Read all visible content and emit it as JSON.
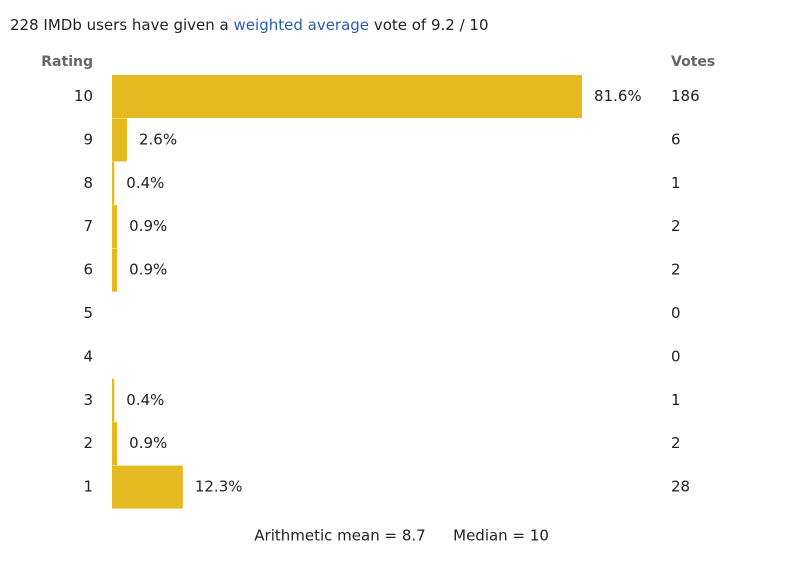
{
  "summary": {
    "prefix": "228 IMDb users have given a",
    "link": "weighted average",
    "suffix": "vote of 9.2 / 10"
  },
  "chart_data": {
    "type": "hbar",
    "category_header": "Rating",
    "votes_header": "Votes",
    "categories": [
      "10",
      "9",
      "8",
      "7",
      "6",
      "5",
      "4",
      "3",
      "2",
      "1"
    ],
    "values": [
      81.6,
      2.6,
      0.4,
      0.9,
      0.9,
      0,
      0,
      0.4,
      0.9,
      12.3
    ],
    "value_labels": [
      "81.6%",
      "2.6%",
      "0.4%",
      "0.9%",
      "0.9%",
      null,
      null,
      "0.4%",
      "0.9%",
      "12.3%"
    ],
    "votes": [
      186,
      6,
      1,
      2,
      2,
      0,
      0,
      1,
      2,
      28
    ],
    "color": "#e5b920"
  },
  "footer": {
    "mean": "Arithmetic mean = 8.7",
    "median": "Median = 10"
  }
}
